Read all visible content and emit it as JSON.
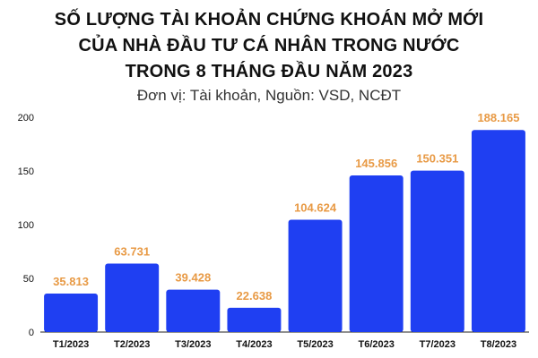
{
  "chart_data": {
    "type": "bar",
    "title_lines": [
      "SỐ LƯỢNG TÀI KHOẢN CHỨNG KHOÁN MỞ MỚI",
      "CỦA NHÀ ĐẦU TƯ CÁ NHÂN TRONG NƯỚC",
      "TRONG 8 THÁNG ĐẦU NĂM 2023"
    ],
    "subtitle": "Đơn vị: Tài khoản, Nguồn: VSD, NCĐT",
    "categories": [
      "T1/2023",
      "T2/2023",
      "T3/2023",
      "T4/2023",
      "T5/2023",
      "T6/2023",
      "T7/2023",
      "T8/2023"
    ],
    "values": [
      35.813,
      63.731,
      39.428,
      22.638,
      104.624,
      145.856,
      150.351,
      188.165
    ],
    "value_labels": [
      "35.813",
      "63.731",
      "39.428",
      "22.638",
      "104.624",
      "145.856",
      "150.351",
      "188.165"
    ],
    "y_ticks": [
      0,
      50,
      100,
      150,
      200
    ],
    "ylim": [
      0,
      200
    ],
    "grid": false,
    "bar_color": "#1f3ff2",
    "label_color": "#e89a45"
  }
}
